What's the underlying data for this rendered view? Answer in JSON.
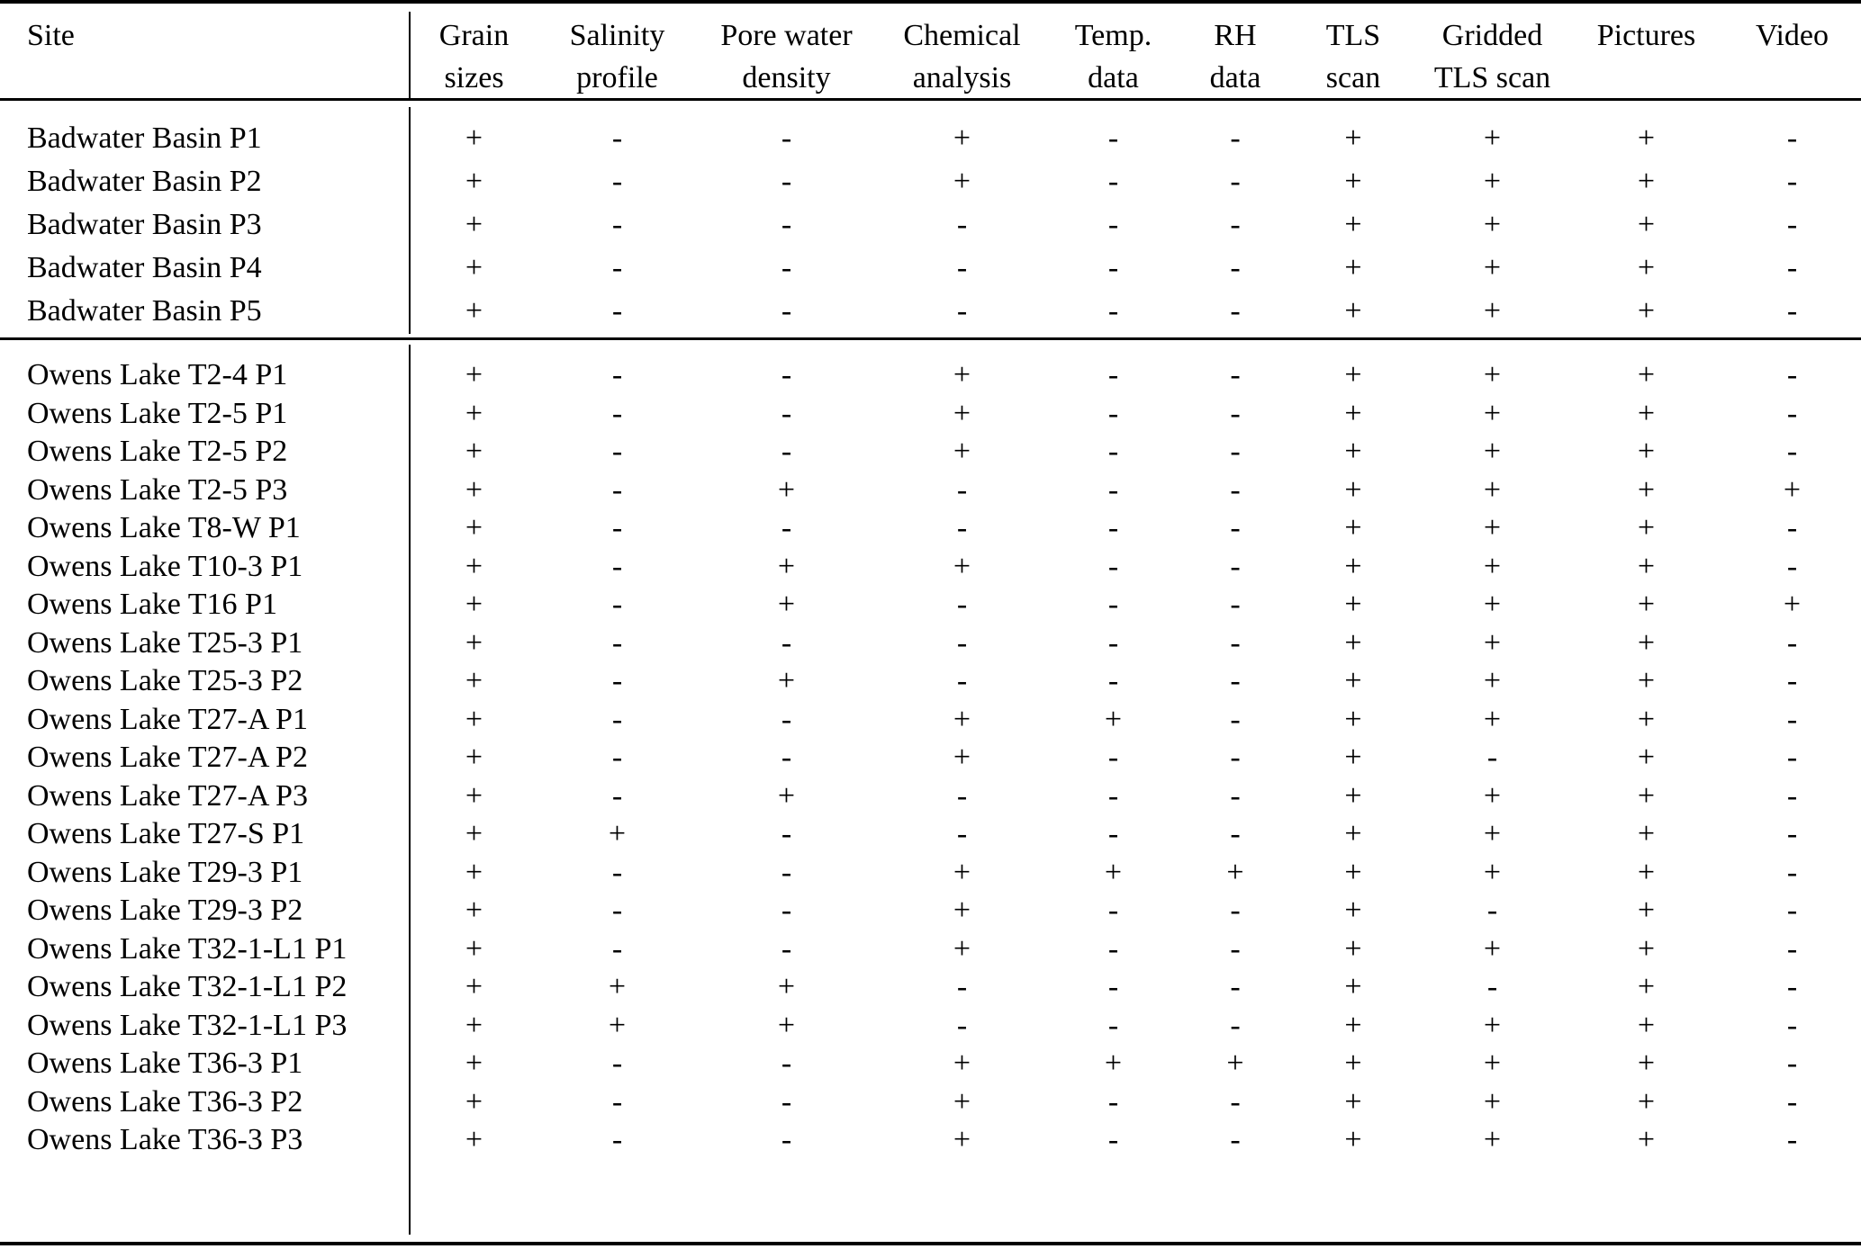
{
  "table": {
    "columns": [
      {
        "key": "site",
        "label": "Site",
        "label2": ""
      },
      {
        "key": "grain",
        "label": "Grain",
        "label2": "sizes"
      },
      {
        "key": "salinity",
        "label": "Salinity",
        "label2": "profile"
      },
      {
        "key": "pore",
        "label": "Pore water",
        "label2": "density"
      },
      {
        "key": "chemical",
        "label": "Chemical",
        "label2": "analysis"
      },
      {
        "key": "temp",
        "label": "Temp.",
        "label2": "data"
      },
      {
        "key": "rh",
        "label": "RH",
        "label2": "data"
      },
      {
        "key": "tls",
        "label": "TLS",
        "label2": "scan"
      },
      {
        "key": "gridded",
        "label": "Gridded",
        "label2": "TLS scan"
      },
      {
        "key": "pictures",
        "label": "Pictures",
        "label2": ""
      },
      {
        "key": "video",
        "label": "Video",
        "label2": ""
      }
    ],
    "symbol_present": "+",
    "symbol_absent": "-",
    "groups": [
      {
        "name": "badwater",
        "rows": [
          {
            "site": "Badwater Basin P1",
            "values": [
              "+",
              "-",
              "-",
              "+",
              "-",
              "-",
              "+",
              "+",
              "+",
              "-"
            ]
          },
          {
            "site": "Badwater Basin P2",
            "values": [
              "+",
              "-",
              "-",
              "+",
              "-",
              "-",
              "+",
              "+",
              "+",
              "-"
            ]
          },
          {
            "site": "Badwater Basin P3",
            "values": [
              "+",
              "-",
              "-",
              "-",
              "-",
              "-",
              "+",
              "+",
              "+",
              "-"
            ]
          },
          {
            "site": "Badwater Basin P4",
            "values": [
              "+",
              "-",
              "-",
              "-",
              "-",
              "-",
              "+",
              "+",
              "+",
              "-"
            ]
          },
          {
            "site": "Badwater Basin P5",
            "values": [
              "+",
              "-",
              "-",
              "-",
              "-",
              "-",
              "+",
              "+",
              "+",
              "-"
            ]
          }
        ]
      },
      {
        "name": "owens",
        "rows": [
          {
            "site": "Owens Lake T2-4 P1",
            "values": [
              "+",
              "-",
              "-",
              "+",
              "-",
              "-",
              "+",
              "+",
              "+",
              "-"
            ]
          },
          {
            "site": "Owens Lake T2-5 P1",
            "values": [
              "+",
              "-",
              "-",
              "+",
              "-",
              "-",
              "+",
              "+",
              "+",
              "-"
            ]
          },
          {
            "site": "Owens Lake T2-5 P2",
            "values": [
              "+",
              "-",
              "-",
              "+",
              "-",
              "-",
              "+",
              "+",
              "+",
              "-"
            ]
          },
          {
            "site": "Owens Lake T2-5 P3",
            "values": [
              "+",
              "-",
              "+",
              "-",
              "-",
              "-",
              "+",
              "+",
              "+",
              "+"
            ]
          },
          {
            "site": "Owens Lake T8-W P1",
            "values": [
              "+",
              "-",
              "-",
              "-",
              "-",
              "-",
              "+",
              "+",
              "+",
              "-"
            ]
          },
          {
            "site": "Owens Lake T10-3 P1",
            "values": [
              "+",
              "-",
              "+",
              "+",
              "-",
              "-",
              "+",
              "+",
              "+",
              "-"
            ]
          },
          {
            "site": "Owens Lake T16 P1",
            "values": [
              "+",
              "-",
              "+",
              "-",
              "-",
              "-",
              "+",
              "+",
              "+",
              "+"
            ]
          },
          {
            "site": "Owens Lake T25-3 P1",
            "values": [
              "+",
              "-",
              "-",
              "-",
              "-",
              "-",
              "+",
              "+",
              "+",
              "-"
            ]
          },
          {
            "site": "Owens Lake T25-3 P2",
            "values": [
              "+",
              "-",
              "+",
              "-",
              "-",
              "-",
              "+",
              "+",
              "+",
              "-"
            ]
          },
          {
            "site": "Owens Lake T27-A P1",
            "values": [
              "+",
              "-",
              "-",
              "+",
              "+",
              "-",
              "+",
              "+",
              "+",
              "-"
            ]
          },
          {
            "site": "Owens Lake T27-A P2",
            "values": [
              "+",
              "-",
              "-",
              "+",
              "-",
              "-",
              "+",
              "-",
              "+",
              "-"
            ]
          },
          {
            "site": "Owens Lake T27-A P3",
            "values": [
              "+",
              "-",
              "+",
              "-",
              "-",
              "-",
              "+",
              "+",
              "+",
              "-"
            ]
          },
          {
            "site": "Owens Lake T27-S P1",
            "values": [
              "+",
              "+",
              "-",
              "-",
              "-",
              "-",
              "+",
              "+",
              "+",
              "-"
            ]
          },
          {
            "site": "Owens Lake T29-3 P1",
            "values": [
              "+",
              "-",
              "-",
              "+",
              "+",
              "+",
              "+",
              "+",
              "+",
              "-"
            ]
          },
          {
            "site": "Owens Lake T29-3 P2",
            "values": [
              "+",
              "-",
              "-",
              "+",
              "-",
              "-",
              "+",
              "-",
              "+",
              "-"
            ]
          },
          {
            "site": "Owens Lake T32-1-L1 P1",
            "values": [
              "+",
              "-",
              "-",
              "+",
              "-",
              "-",
              "+",
              "+",
              "+",
              "-"
            ]
          },
          {
            "site": "Owens Lake T32-1-L1 P2",
            "values": [
              "+",
              "+",
              "+",
              "-",
              "-",
              "-",
              "+",
              "-",
              "+",
              "-"
            ]
          },
          {
            "site": "Owens Lake T32-1-L1 P3",
            "values": [
              "+",
              "+",
              "+",
              "-",
              "-",
              "-",
              "+",
              "+",
              "+",
              "-"
            ]
          },
          {
            "site": "Owens Lake T36-3 P1",
            "values": [
              "+",
              "-",
              "-",
              "+",
              "+",
              "+",
              "+",
              "+",
              "+",
              "-"
            ]
          },
          {
            "site": "Owens Lake T36-3 P2",
            "values": [
              "+",
              "-",
              "-",
              "+",
              "-",
              "-",
              "+",
              "+",
              "+",
              "-"
            ]
          },
          {
            "site": "Owens Lake T36-3 P3",
            "values": [
              "+",
              "-",
              "-",
              "+",
              "-",
              "-",
              "+",
              "+",
              "+",
              "-"
            ]
          }
        ]
      }
    ]
  }
}
